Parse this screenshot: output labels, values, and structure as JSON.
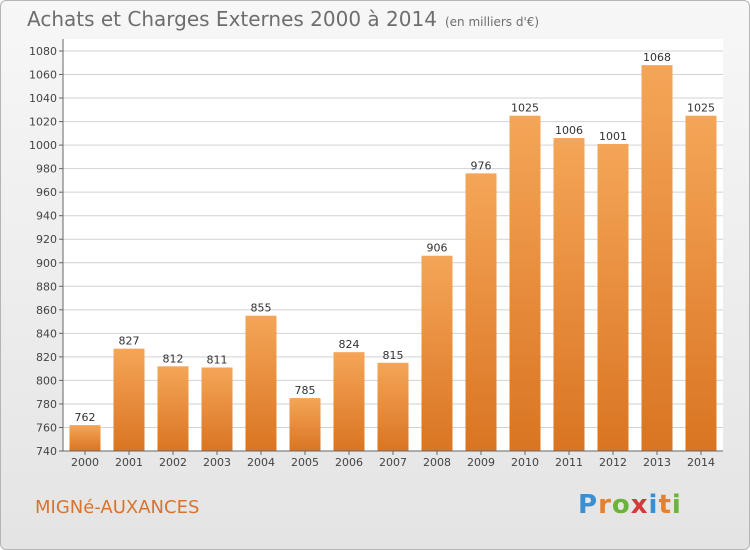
{
  "header": {
    "title": "Achats et Charges Externes 2000 à 2014",
    "unit": "(en milliers d'€)"
  },
  "footer": {
    "city": "MIGNé-AUXANCES",
    "logo_letters": [
      "P",
      "r",
      "o",
      "x",
      "i",
      "t",
      "i"
    ],
    "logo_colors": [
      "#3b8fd0",
      "#e8802b",
      "#6ab43c",
      "#d23a3a",
      "#3b8fd0",
      "#e8802b",
      "#6ab43c"
    ]
  },
  "chart_data": {
    "type": "bar",
    "categories": [
      "2000",
      "2001",
      "2002",
      "2003",
      "2004",
      "2005",
      "2006",
      "2007",
      "2008",
      "2009",
      "2010",
      "2011",
      "2012",
      "2013",
      "2014"
    ],
    "values": [
      762,
      827,
      812,
      811,
      855,
      785,
      824,
      815,
      906,
      976,
      1025,
      1006,
      1001,
      1068,
      1025
    ],
    "ylim": [
      740,
      1080
    ],
    "yticks": [
      740,
      760,
      780,
      800,
      820,
      840,
      860,
      880,
      900,
      920,
      940,
      960,
      980,
      1000,
      1020,
      1040,
      1060,
      1080
    ],
    "grid": true,
    "bar_color_top": "#f5a558",
    "bar_color_bottom": "#d97522"
  }
}
